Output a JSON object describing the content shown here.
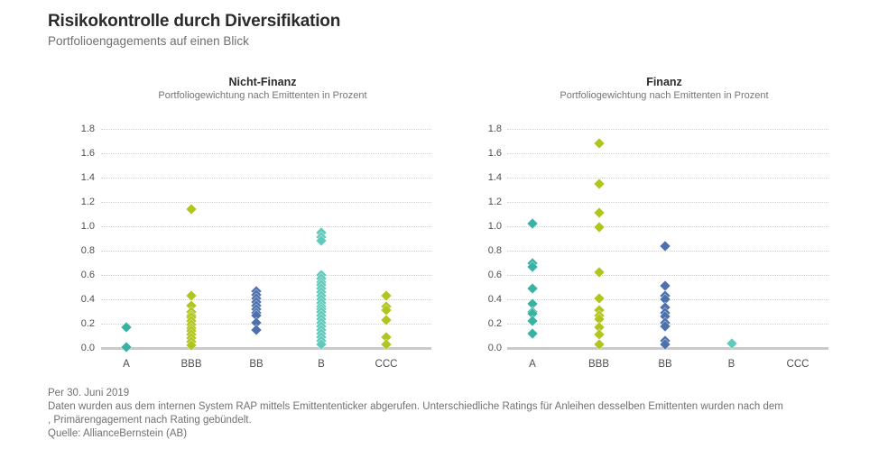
{
  "header": {
    "title": "Risikokontrolle durch Diversifikation",
    "subtitle": "Portfolioengagements auf einen Blick"
  },
  "footer": {
    "line1": "Per 30. Juni 2019",
    "line2": "Daten wurden aus dem internen System RAP mittels Emittententicker abgerufen. Unterschiedliche Ratings für Anleihen desselben Emittenten wurden nach dem",
    "line3": ", Primärengagement nach Rating gebündelt.",
    "line4": "Quelle: AllianceBernstein (AB)"
  },
  "colors": {
    "A": "#38b2a4",
    "BBB": "#b1c51f",
    "BB": "#4d71ad",
    "B": "#5fcabb",
    "CCC": "#b1c51f",
    "grid": "#d2d2d2",
    "zero_line": "#c9c9c9",
    "title_text": "#2b2b2b",
    "gray_text": "#707070",
    "axis_text": "#4f4f4f"
  },
  "chart_data": [
    {
      "type": "scatter",
      "marker": "diamond",
      "title": "Nicht-Finanz",
      "subtitle": "Portfoliogewichtung nach Emittenten in Prozent",
      "xlabel": "",
      "ylabel": "",
      "ylim": [
        0,
        1.8
      ],
      "ytick_step": 0.2,
      "grid": true,
      "legend": "none",
      "categories": [
        "A",
        "BBB",
        "BB",
        "B",
        "CCC"
      ],
      "series": [
        {
          "name": "A",
          "values": [
            0.17,
            0.01
          ]
        },
        {
          "name": "BBB",
          "values": [
            1.14,
            0.43,
            0.35,
            0.3,
            0.27,
            0.25,
            0.22,
            0.19,
            0.16,
            0.14,
            0.11,
            0.08,
            0.05,
            0.02
          ]
        },
        {
          "name": "BB",
          "values": [
            0.47,
            0.44,
            0.41,
            0.38,
            0.35,
            0.32,
            0.29,
            0.27,
            0.21,
            0.15
          ]
        },
        {
          "name": "B",
          "values": [
            0.95,
            0.91,
            0.88,
            0.6,
            0.57,
            0.54,
            0.52,
            0.49,
            0.46,
            0.43,
            0.4,
            0.37,
            0.34,
            0.32,
            0.3,
            0.27,
            0.24,
            0.21,
            0.18,
            0.15,
            0.12,
            0.09,
            0.06,
            0.03
          ]
        },
        {
          "name": "CCC",
          "values": [
            0.43,
            0.34,
            0.31,
            0.23,
            0.09,
            0.03
          ]
        }
      ]
    },
    {
      "type": "scatter",
      "marker": "diamond",
      "title": "Finanz",
      "subtitle": "Portfoliogewichtung nach Emittenten in Prozent",
      "xlabel": "",
      "ylabel": "",
      "ylim": [
        0,
        1.8
      ],
      "ytick_step": 0.2,
      "grid": true,
      "legend": "none",
      "categories": [
        "A",
        "BBB",
        "BB",
        "B",
        "CCC"
      ],
      "series": [
        {
          "name": "A",
          "values": [
            1.02,
            0.7,
            0.67,
            0.49,
            0.36,
            0.3,
            0.28,
            0.22,
            0.12
          ]
        },
        {
          "name": "BBB",
          "values": [
            1.68,
            1.35,
            1.11,
            0.99,
            0.62,
            0.41,
            0.31,
            0.27,
            0.24,
            0.17,
            0.11,
            0.03
          ]
        },
        {
          "name": "BB",
          "values": [
            0.84,
            0.51,
            0.43,
            0.4,
            0.33,
            0.29,
            0.26,
            0.21,
            0.18,
            0.06,
            0.03
          ]
        },
        {
          "name": "B",
          "values": [
            0.04
          ]
        },
        {
          "name": "CCC",
          "values": []
        }
      ]
    }
  ]
}
